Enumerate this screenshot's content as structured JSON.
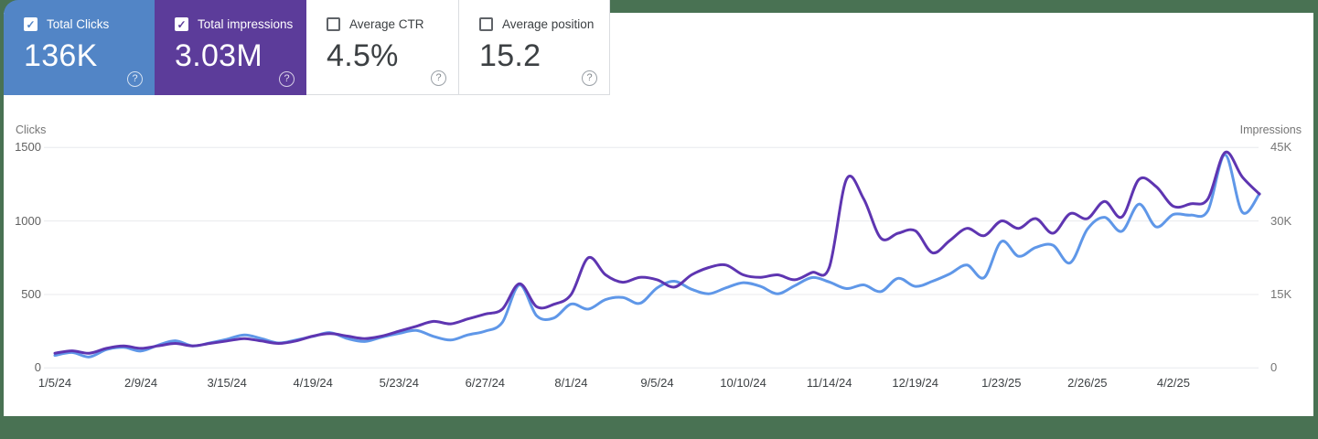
{
  "ui": {
    "check_glyph": "✓",
    "help_glyph": "?"
  },
  "colors": {
    "frame_background": "#497253",
    "clicks_card": "#5285c6",
    "impressions_card": "#5c3c9a",
    "clicks_line": "#5f97e8",
    "impressions_line": "#5e35b1",
    "gridline": "#e8eaed",
    "white_card_border": "#dadce0"
  },
  "cards": [
    {
      "label": "Total Clicks",
      "value": "136K",
      "checked": true,
      "bg": "#5285c6"
    },
    {
      "label": "Total impressions",
      "value": "3.03M",
      "checked": true,
      "bg": "#5c3c9a"
    },
    {
      "label": "Average CTR",
      "value": "4.5%",
      "checked": false,
      "bg": "#ffffff"
    },
    {
      "label": "Average position",
      "value": "15.2",
      "checked": false,
      "bg": "#ffffff"
    }
  ],
  "chart_data": {
    "type": "line",
    "grid": true,
    "left_axis": {
      "title": "Clicks",
      "tick_labels": [
        "1500",
        "1000",
        "500",
        "0"
      ],
      "tick_values": [
        1500,
        1000,
        500,
        0
      ],
      "max": 1500
    },
    "right_axis": {
      "title": "Impressions",
      "tick_labels": [
        "45K",
        "30K",
        "15K",
        "0"
      ],
      "tick_values": [
        45000,
        30000,
        15000,
        0
      ],
      "max": 45000
    },
    "x_tick_labels": [
      "1/5/24",
      "2/9/24",
      "3/15/24",
      "4/19/24",
      "5/23/24",
      "6/27/24",
      "8/1/24",
      "9/5/24",
      "10/10/24",
      "11/14/24",
      "12/19/24",
      "1/23/25",
      "2/26/25",
      "4/2/25"
    ],
    "x_tick_interval": 5,
    "series": [
      {
        "name": "Clicks",
        "axis": "left",
        "color": "#5f97e8",
        "values": [
          85,
          105,
          75,
          125,
          140,
          115,
          155,
          185,
          150,
          170,
          195,
          225,
          200,
          170,
          190,
          215,
          240,
          200,
          180,
          210,
          235,
          255,
          215,
          190,
          225,
          250,
          310,
          565,
          355,
          340,
          435,
          400,
          465,
          480,
          440,
          545,
          590,
          535,
          505,
          545,
          580,
          555,
          505,
          560,
          615,
          585,
          540,
          565,
          520,
          610,
          555,
          590,
          640,
          700,
          615,
          860,
          760,
          820,
          835,
          715,
          945,
          1025,
          930,
          1115,
          960,
          1045,
          1040,
          1070,
          1450,
          1060,
          1185
        ]
      },
      {
        "name": "Impressions",
        "axis": "right",
        "color": "#5e35b1",
        "values": [
          3000,
          3500,
          3000,
          4000,
          4500,
          4000,
          4500,
          5000,
          4500,
          5000,
          5500,
          6000,
          5500,
          5000,
          5500,
          6500,
          7000,
          6500,
          6000,
          6500,
          7500,
          8500,
          9500,
          9000,
          10000,
          11000,
          12000,
          17200,
          12500,
          13000,
          15000,
          22500,
          19000,
          17500,
          18500,
          18000,
          16500,
          19000,
          20500,
          21000,
          19000,
          18500,
          19000,
          18000,
          19500,
          20500,
          38500,
          34500,
          26500,
          27500,
          28000,
          23500,
          26000,
          28500,
          27000,
          30000,
          28500,
          30500,
          27500,
          31500,
          30500,
          34000,
          30800,
          38500,
          37000,
          33000,
          33500,
          34500,
          44000,
          39000,
          35500
        ]
      }
    ]
  }
}
